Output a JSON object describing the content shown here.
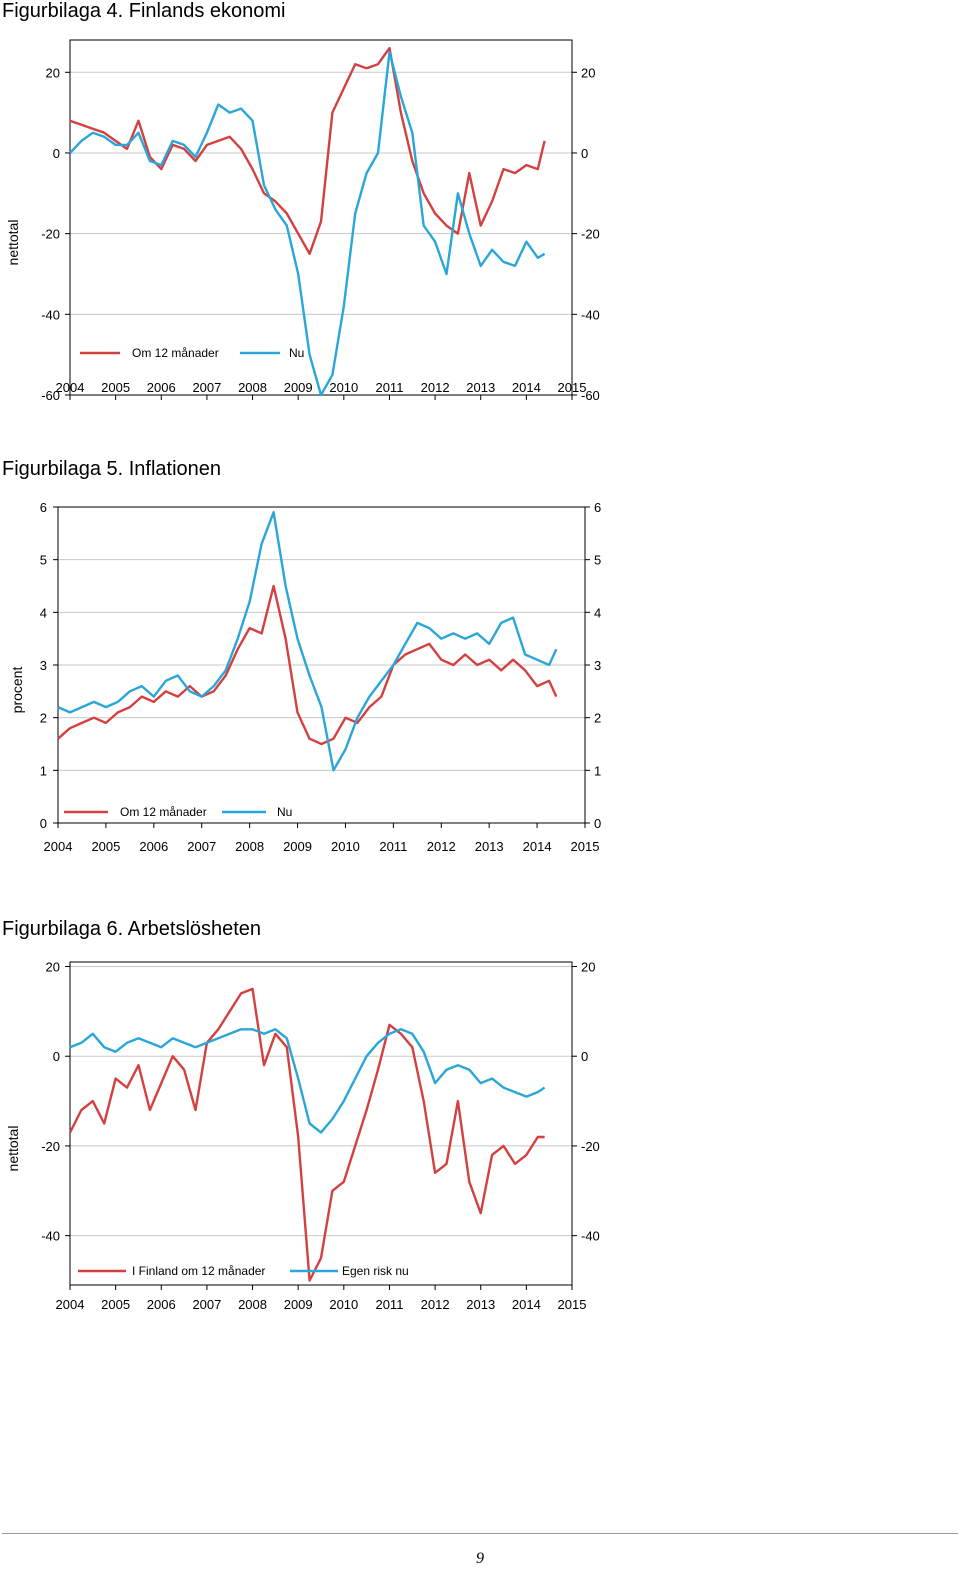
{
  "figures": [
    {
      "title": "Figurbilaga 4. Finlands ekonomi"
    },
    {
      "title": "Figurbilaga 5. Inflationen"
    },
    {
      "title": "Figurbilaga 6. Arbetslösheten"
    }
  ],
  "colors": {
    "red": "#d44040",
    "blue": "#2aa6d8",
    "grid": "#c8c8c8",
    "frame": "#000000",
    "bg": "#ffffff"
  },
  "chart_data": [
    {
      "type": "line",
      "ylabel": "nettotal",
      "xlim": [
        2004,
        2015
      ],
      "ylim": [
        -60,
        28
      ],
      "yticks": [
        20,
        0,
        -20,
        -40,
        -60
      ],
      "xticks": [
        "2004",
        "2005",
        "2006",
        "2007",
        "2008",
        "2009",
        "2010",
        "2011",
        "2012",
        "2013",
        "2014",
        "2015"
      ],
      "grid": true,
      "legend_position": "bottom-left",
      "series": [
        {
          "name": "Om 12 månader",
          "color": "red",
          "x": [
            2004.0,
            2004.25,
            2004.5,
            2004.75,
            2005.0,
            2005.25,
            2005.5,
            2005.75,
            2006.0,
            2006.25,
            2006.5,
            2006.75,
            2007.0,
            2007.25,
            2007.5,
            2007.75,
            2008.0,
            2008.25,
            2008.5,
            2008.75,
            2009.0,
            2009.25,
            2009.5,
            2009.75,
            2010.0,
            2010.25,
            2010.5,
            2010.75,
            2011.0,
            2011.25,
            2011.5,
            2011.75,
            2012.0,
            2012.25,
            2012.5,
            2012.75,
            2013.0,
            2013.25,
            2013.5,
            2013.75,
            2014.0,
            2014.25,
            2014.4
          ],
          "y": [
            8,
            7,
            6,
            5,
            3,
            1,
            8,
            -1,
            -4,
            2,
            1,
            -2,
            2,
            3,
            4,
            1,
            -4,
            -10,
            -12,
            -15,
            -20,
            -25,
            -17,
            10,
            16,
            22,
            21,
            22,
            26,
            10,
            -2,
            -10,
            -15,
            -18,
            -20,
            -5,
            -18,
            -12,
            -4,
            -5,
            -3,
            -4,
            3
          ]
        },
        {
          "name": "Nu",
          "color": "blue",
          "x": [
            2004.0,
            2004.25,
            2004.5,
            2004.75,
            2005.0,
            2005.25,
            2005.5,
            2005.75,
            2006.0,
            2006.25,
            2006.5,
            2006.75,
            2007.0,
            2007.25,
            2007.5,
            2007.75,
            2008.0,
            2008.25,
            2008.5,
            2008.75,
            2009.0,
            2009.25,
            2009.5,
            2009.75,
            2010.0,
            2010.25,
            2010.5,
            2010.75,
            2011.0,
            2011.25,
            2011.5,
            2011.75,
            2012.0,
            2012.25,
            2012.5,
            2012.75,
            2013.0,
            2013.25,
            2013.5,
            2013.75,
            2014.0,
            2014.25,
            2014.4
          ],
          "y": [
            0,
            3,
            5,
            4,
            2,
            2,
            5,
            -2,
            -3,
            3,
            2,
            -1,
            5,
            12,
            10,
            11,
            8,
            -8,
            -14,
            -18,
            -30,
            -50,
            -60,
            -55,
            -38,
            -15,
            -5,
            0,
            25,
            14,
            5,
            -18,
            -22,
            -30,
            -10,
            -20,
            -28,
            -24,
            -27,
            -28,
            -22,
            -26,
            -25
          ]
        }
      ]
    },
    {
      "type": "line",
      "ylabel": "procent",
      "xlim": [
        2004,
        2015
      ],
      "ylim": [
        0,
        6
      ],
      "yticks": [
        6,
        5,
        4,
        3,
        2,
        1,
        0
      ],
      "xticks": [
        "2004",
        "2005",
        "2006",
        "2007",
        "2008",
        "2009",
        "2010",
        "2011",
        "2012",
        "2013",
        "2014",
        "2015"
      ],
      "grid": true,
      "legend_position": "bottom-left",
      "series": [
        {
          "name": "Om 12 månader",
          "color": "red",
          "x": [
            2004.0,
            2004.25,
            2004.5,
            2004.75,
            2005.0,
            2005.25,
            2005.5,
            2005.75,
            2006.0,
            2006.25,
            2006.5,
            2006.75,
            2007.0,
            2007.25,
            2007.5,
            2007.75,
            2008.0,
            2008.25,
            2008.5,
            2008.75,
            2009.0,
            2009.25,
            2009.5,
            2009.75,
            2010.0,
            2010.25,
            2010.5,
            2010.75,
            2011.0,
            2011.25,
            2011.5,
            2011.75,
            2012.0,
            2012.25,
            2012.5,
            2012.75,
            2013.0,
            2013.25,
            2013.5,
            2013.75,
            2014.0,
            2014.25,
            2014.4
          ],
          "y": [
            1.6,
            1.8,
            1.9,
            2.0,
            1.9,
            2.1,
            2.2,
            2.4,
            2.3,
            2.5,
            2.4,
            2.6,
            2.4,
            2.5,
            2.8,
            3.3,
            3.7,
            3.6,
            4.5,
            3.5,
            2.1,
            1.6,
            1.5,
            1.6,
            2.0,
            1.9,
            2.2,
            2.4,
            3.0,
            3.2,
            3.3,
            3.4,
            3.1,
            3.0,
            3.2,
            3.0,
            3.1,
            2.9,
            3.1,
            2.9,
            2.6,
            2.7,
            2.4
          ]
        },
        {
          "name": "Nu",
          "color": "blue",
          "x": [
            2004.0,
            2004.25,
            2004.5,
            2004.75,
            2005.0,
            2005.25,
            2005.5,
            2005.75,
            2006.0,
            2006.25,
            2006.5,
            2006.75,
            2007.0,
            2007.25,
            2007.5,
            2007.75,
            2008.0,
            2008.25,
            2008.5,
            2008.75,
            2009.0,
            2009.25,
            2009.5,
            2009.75,
            2010.0,
            2010.25,
            2010.5,
            2010.75,
            2011.0,
            2011.25,
            2011.5,
            2011.75,
            2012.0,
            2012.25,
            2012.5,
            2012.75,
            2013.0,
            2013.25,
            2013.5,
            2013.75,
            2014.0,
            2014.25,
            2014.4
          ],
          "y": [
            2.2,
            2.1,
            2.2,
            2.3,
            2.2,
            2.3,
            2.5,
            2.6,
            2.4,
            2.7,
            2.8,
            2.5,
            2.4,
            2.6,
            2.9,
            3.5,
            4.2,
            5.3,
            5.9,
            4.5,
            3.5,
            2.8,
            2.2,
            1.0,
            1.4,
            2.0,
            2.4,
            2.7,
            3.0,
            3.4,
            3.8,
            3.7,
            3.5,
            3.6,
            3.5,
            3.6,
            3.4,
            3.8,
            3.9,
            3.2,
            3.1,
            3.0,
            3.3
          ]
        }
      ]
    },
    {
      "type": "line",
      "ylabel": "nettotal",
      "xlim": [
        2004,
        2015
      ],
      "ylim": [
        -51,
        21
      ],
      "yticks": [
        20,
        0,
        -20,
        -40
      ],
      "xticks": [
        "2004",
        "2005",
        "2006",
        "2007",
        "2008",
        "2009",
        "2010",
        "2011",
        "2012",
        "2013",
        "2014",
        "2015"
      ],
      "grid": true,
      "legend_position": "bottom-left",
      "series": [
        {
          "name": "I Finland om 12 månader",
          "color": "red",
          "x": [
            2004.0,
            2004.25,
            2004.5,
            2004.75,
            2005.0,
            2005.25,
            2005.5,
            2005.75,
            2006.0,
            2006.25,
            2006.5,
            2006.75,
            2007.0,
            2007.25,
            2007.5,
            2007.75,
            2008.0,
            2008.25,
            2008.5,
            2008.75,
            2009.0,
            2009.25,
            2009.5,
            2009.75,
            2010.0,
            2010.25,
            2010.5,
            2010.75,
            2011.0,
            2011.25,
            2011.5,
            2011.75,
            2012.0,
            2012.25,
            2012.5,
            2012.75,
            2013.0,
            2013.25,
            2013.5,
            2013.75,
            2014.0,
            2014.25,
            2014.4
          ],
          "y": [
            -17,
            -12,
            -10,
            -15,
            -5,
            -7,
            -2,
            -12,
            -6,
            0,
            -3,
            -12,
            3,
            6,
            10,
            14,
            15,
            -2,
            5,
            2,
            -18,
            -50,
            -45,
            -30,
            -28,
            -20,
            -12,
            -3,
            7,
            5,
            2,
            -10,
            -26,
            -24,
            -10,
            -28,
            -35,
            -22,
            -20,
            -24,
            -22,
            -18,
            -18
          ]
        },
        {
          "name": "Egen risk nu",
          "color": "blue",
          "x": [
            2004.0,
            2004.25,
            2004.5,
            2004.75,
            2005.0,
            2005.25,
            2005.5,
            2005.75,
            2006.0,
            2006.25,
            2006.5,
            2006.75,
            2007.0,
            2007.25,
            2007.5,
            2007.75,
            2008.0,
            2008.25,
            2008.5,
            2008.75,
            2009.0,
            2009.25,
            2009.5,
            2009.75,
            2010.0,
            2010.25,
            2010.5,
            2010.75,
            2011.0,
            2011.25,
            2011.5,
            2011.75,
            2012.0,
            2012.25,
            2012.5,
            2012.75,
            2013.0,
            2013.25,
            2013.5,
            2013.75,
            2014.0,
            2014.25,
            2014.4
          ],
          "y": [
            2,
            3,
            5,
            2,
            1,
            3,
            4,
            3,
            2,
            4,
            3,
            2,
            3,
            4,
            5,
            6,
            6,
            5,
            6,
            4,
            -5,
            -15,
            -17,
            -14,
            -10,
            -5,
            0,
            3,
            5,
            6,
            5,
            1,
            -6,
            -3,
            -2,
            -3,
            -6,
            -5,
            -7,
            -8,
            -9,
            -8,
            -7
          ]
        }
      ]
    }
  ],
  "footer": {
    "page_number": "9"
  }
}
